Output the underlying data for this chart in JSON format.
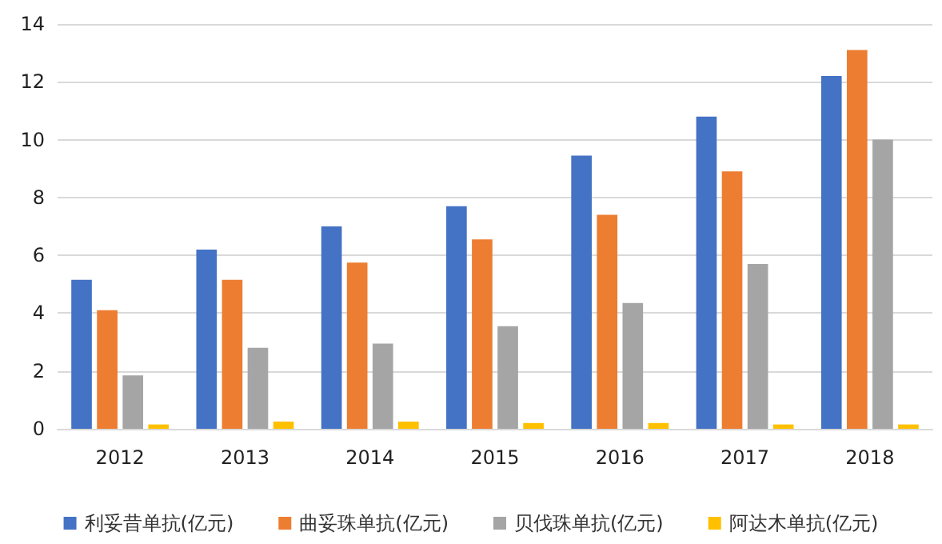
{
  "chart_data": {
    "type": "bar",
    "categories": [
      "2012",
      "2013",
      "2014",
      "2015",
      "2016",
      "2017",
      "2018"
    ],
    "series": [
      {
        "name": "利妥昔单抗(亿元)",
        "color": "#4472c4",
        "values": [
          5.15,
          6.2,
          7.0,
          7.7,
          9.45,
          10.8,
          12.2
        ]
      },
      {
        "name": "曲妥珠单抗(亿元)",
        "color": "#ed7d31",
        "values": [
          4.1,
          5.15,
          5.75,
          6.55,
          7.4,
          8.9,
          13.1
        ]
      },
      {
        "name": "贝伐珠单抗(亿元)",
        "color": "#a5a5a5",
        "values": [
          1.85,
          2.8,
          2.95,
          3.55,
          4.35,
          5.7,
          10.0
        ]
      },
      {
        "name": "阿达木单抗(亿元)",
        "color": "#ffc000",
        "values": [
          0.15,
          0.25,
          0.25,
          0.2,
          0.2,
          0.15,
          0.15
        ]
      }
    ],
    "ylim": [
      0,
      14
    ],
    "yticks": [
      0,
      2,
      4,
      6,
      8,
      10,
      12,
      14
    ],
    "grid": "y",
    "legend": "bottom"
  }
}
